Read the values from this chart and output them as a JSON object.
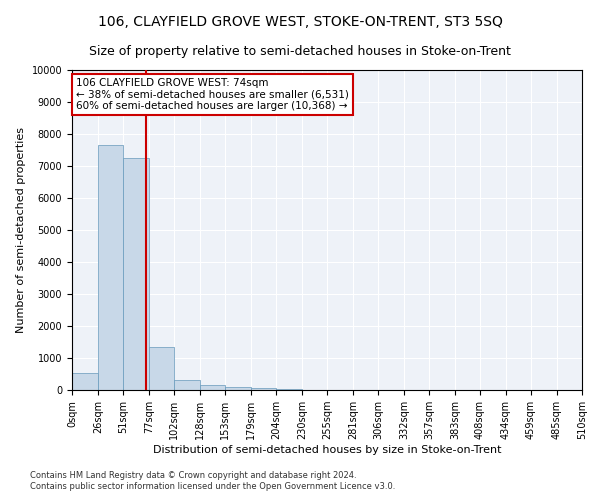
{
  "title": "106, CLAYFIELD GROVE WEST, STOKE-ON-TRENT, ST3 5SQ",
  "subtitle": "Size of property relative to semi-detached houses in Stoke-on-Trent",
  "xlabel": "Distribution of semi-detached houses by size in Stoke-on-Trent",
  "ylabel": "Number of semi-detached properties",
  "footnote1": "Contains HM Land Registry data © Crown copyright and database right 2024.",
  "footnote2": "Contains public sector information licensed under the Open Government Licence v3.0.",
  "bin_edges": [
    0,
    26,
    51,
    77,
    102,
    128,
    153,
    179,
    204,
    230,
    255,
    281,
    306,
    332,
    357,
    383,
    408,
    434,
    459,
    485,
    510
  ],
  "bar_heights": [
    530,
    7650,
    7250,
    1350,
    310,
    150,
    100,
    70,
    30,
    15,
    8,
    5,
    3,
    2,
    1,
    1,
    0,
    0,
    0,
    0
  ],
  "bar_color": "#c8d8e8",
  "bar_edge_color": "#6699bb",
  "property_size": 74,
  "red_line_color": "#cc0000",
  "annotation_line1": "106 CLAYFIELD GROVE WEST: 74sqm",
  "annotation_line2": "← 38% of semi-detached houses are smaller (6,531)",
  "annotation_line3": "60% of semi-detached houses are larger (10,368) →",
  "annotation_box_color": "#cc0000",
  "annotation_text_color": "#000000",
  "ylim": [
    0,
    10000
  ],
  "yticks": [
    0,
    1000,
    2000,
    3000,
    4000,
    5000,
    6000,
    7000,
    8000,
    9000,
    10000
  ],
  "x_tick_labels": [
    "0sqm",
    "26sqm",
    "51sqm",
    "77sqm",
    "102sqm",
    "128sqm",
    "153sqm",
    "179sqm",
    "204sqm",
    "230sqm",
    "255sqm",
    "281sqm",
    "306sqm",
    "332sqm",
    "357sqm",
    "383sqm",
    "408sqm",
    "434sqm",
    "459sqm",
    "485sqm",
    "510sqm"
  ],
  "background_color": "#eef2f8",
  "title_fontsize": 10,
  "subtitle_fontsize": 9,
  "axis_label_fontsize": 8,
  "tick_fontsize": 7,
  "annotation_fontsize": 7.5,
  "footnote_fontsize": 6
}
